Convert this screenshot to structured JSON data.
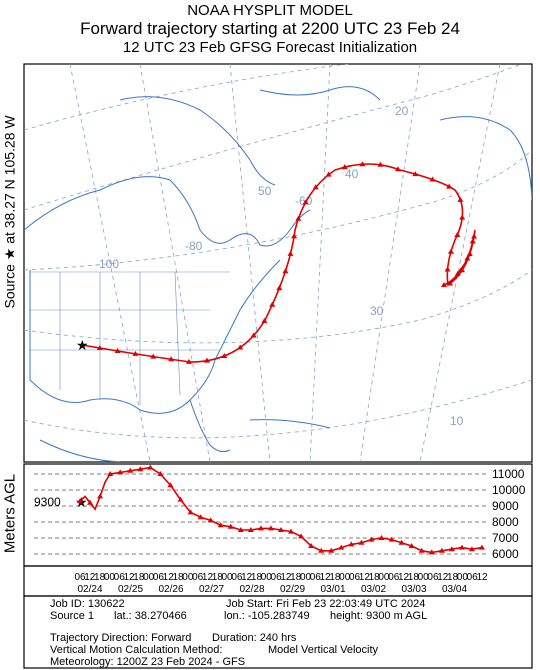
{
  "header": {
    "line1": "NOAA HYSPLIT MODEL",
    "line2": "Forward trajectory starting at 2200 UTC 23 Feb 24",
    "line3": "12 UTC 23 Feb    GFSG  Forecast Initialization"
  },
  "side_label": "Source ★  at   38.27 N  105.28 W",
  "map": {
    "lat_labels": [
      "50",
      "40",
      "30",
      "20",
      "10"
    ],
    "lon_labels": [
      "-100",
      "-80",
      "-60"
    ],
    "colors": {
      "coast": "#3a78c2",
      "grid": "#8aa0c8",
      "traj": "#e00000"
    }
  },
  "chart_data": {
    "type": "line",
    "ylabel": "Meters AGL",
    "start_value_label": "9300",
    "y_ticks": [
      11000,
      10000,
      9000,
      8000,
      7000,
      6000
    ],
    "ylim": [
      5500,
      11500
    ],
    "x_hour_labels": [
      "06",
      "12",
      "18",
      "00",
      "06",
      "12",
      "18",
      "00",
      "06",
      "12",
      "18",
      "00",
      "06",
      "12",
      "18",
      "00",
      "06",
      "12",
      "18",
      "00",
      "06",
      "12",
      "18",
      "00",
      "06",
      "12",
      "18",
      "00",
      "06",
      "12",
      "18",
      "00",
      "06",
      "12",
      "18",
      "00",
      "06",
      "12",
      "18",
      "00",
      "06",
      "12"
    ],
    "x_date_labels": [
      "02/24",
      "02/25",
      "02/26",
      "02/27",
      "02/28",
      "02/29",
      "03/01",
      "03/02",
      "03/03",
      "03/04"
    ],
    "series": [
      {
        "x_hours": [
          0,
          3,
          6,
          9,
          12,
          15,
          18,
          24,
          30,
          36,
          42,
          48,
          54,
          60,
          66,
          72,
          78,
          84,
          90,
          96,
          102,
          108,
          114,
          120,
          126,
          132,
          138,
          144,
          150,
          156,
          162,
          168,
          174,
          180,
          186,
          192,
          198,
          204,
          210,
          216,
          222,
          228,
          234,
          240
        ],
        "values": [
          9300,
          9600,
          9200,
          8800,
          9600,
          10500,
          11000,
          11100,
          11200,
          11300,
          11400,
          11000,
          10300,
          9400,
          8600,
          8300,
          8100,
          7800,
          7700,
          7500,
          7500,
          7600,
          7600,
          7500,
          7400,
          7100,
          6500,
          6200,
          6200,
          6400,
          6600,
          6700,
          6900,
          7000,
          6900,
          6700,
          6500,
          6200,
          6100,
          6200,
          6300,
          6400,
          6300,
          6400
        ]
      }
    ]
  },
  "footer": {
    "job_id": "Job ID: 130622",
    "job_start": "Job Start: Fri Feb 23 22:03:49 UTC 2024",
    "source": "Source 1",
    "lat": "lat.: 38.270466",
    "lon": "lon.: -105.283749",
    "height": "height: 9300 m AGL",
    "direction": "Trajectory Direction: Forward",
    "duration": "Duration: 240 hrs",
    "vertical_method": "Vertical Motion Calculation Method:",
    "vertical_value": "Model Vertical Velocity",
    "meteorology": "Meteorology: 1200Z 23 Feb 2024 - GFS"
  }
}
